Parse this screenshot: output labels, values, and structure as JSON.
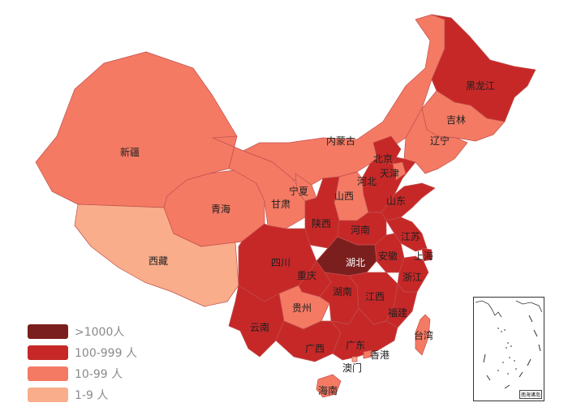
{
  "colors": {
    "over1000": "#7a1f1d",
    "r100_999": "#c62828",
    "r10_99": "#f47a64",
    "r1_9": "#f9ad8b",
    "border": "#c0504d"
  },
  "provinces": {
    "xinjiang": {
      "name": "新疆",
      "tier": "r10_99"
    },
    "xizang": {
      "name": "西藏",
      "tier": "r1_9"
    },
    "qinghai": {
      "name": "青海",
      "tier": "r10_99"
    },
    "gansu": {
      "name": "甘肃",
      "tier": "r10_99"
    },
    "neimenggu": {
      "name": "内蒙古",
      "tier": "r10_99"
    },
    "heilongjiang": {
      "name": "黑龙江",
      "tier": "r100_999"
    },
    "jilin": {
      "name": "吉林",
      "tier": "r10_99"
    },
    "liaoning": {
      "name": "辽宁",
      "tier": "r10_99"
    },
    "beijing": {
      "name": "北京",
      "tier": "r100_999"
    },
    "tianjin": {
      "name": "天津",
      "tier": "r10_99"
    },
    "hebei": {
      "name": "河北",
      "tier": "r100_999"
    },
    "shanxi": {
      "name": "山西",
      "tier": "r10_99"
    },
    "ningxia": {
      "name": "宁夏",
      "tier": "r10_99"
    },
    "shaanxi": {
      "name": "陕西",
      "tier": "r100_999"
    },
    "shandong": {
      "name": "山东",
      "tier": "r100_999"
    },
    "henan": {
      "name": "河南",
      "tier": "r100_999"
    },
    "jiangsu": {
      "name": "江苏",
      "tier": "r100_999"
    },
    "anhui": {
      "name": "安徽",
      "tier": "r100_999"
    },
    "shanghai": {
      "name": "上海",
      "tier": "r100_999"
    },
    "hubei": {
      "name": "湖北",
      "tier": "over1000"
    },
    "sichuan": {
      "name": "四川",
      "tier": "r100_999"
    },
    "chongqing": {
      "name": "重庆",
      "tier": "r100_999"
    },
    "zhejiang": {
      "name": "浙江",
      "tier": "r100_999"
    },
    "guizhou": {
      "name": "贵州",
      "tier": "r10_99"
    },
    "hunan": {
      "name": "湖南",
      "tier": "r100_999"
    },
    "jiangxi": {
      "name": "江西",
      "tier": "r100_999"
    },
    "fujian": {
      "name": "福建",
      "tier": "r100_999"
    },
    "yunnan": {
      "name": "云南",
      "tier": "r100_999"
    },
    "guangxi": {
      "name": "广西",
      "tier": "r100_999"
    },
    "guangdong": {
      "name": "广东",
      "tier": "r100_999"
    },
    "taiwan": {
      "name": "台湾",
      "tier": "r10_99"
    },
    "xianggang": {
      "name": "香港",
      "tier": "r10_99"
    },
    "aomen": {
      "name": "澳门",
      "tier": "r1_9"
    },
    "hainan": {
      "name": "海南",
      "tier": "r10_99"
    }
  },
  "legend": [
    {
      "label": ">1000人",
      "tier": "over1000"
    },
    {
      "label": "100-999 人",
      "tier": "r100_999"
    },
    {
      "label": "10-99 人",
      "tier": "r10_99"
    },
    {
      "label": "1-9 人",
      "tier": "r1_9"
    }
  ],
  "inset": {
    "label": "南海诸岛"
  }
}
